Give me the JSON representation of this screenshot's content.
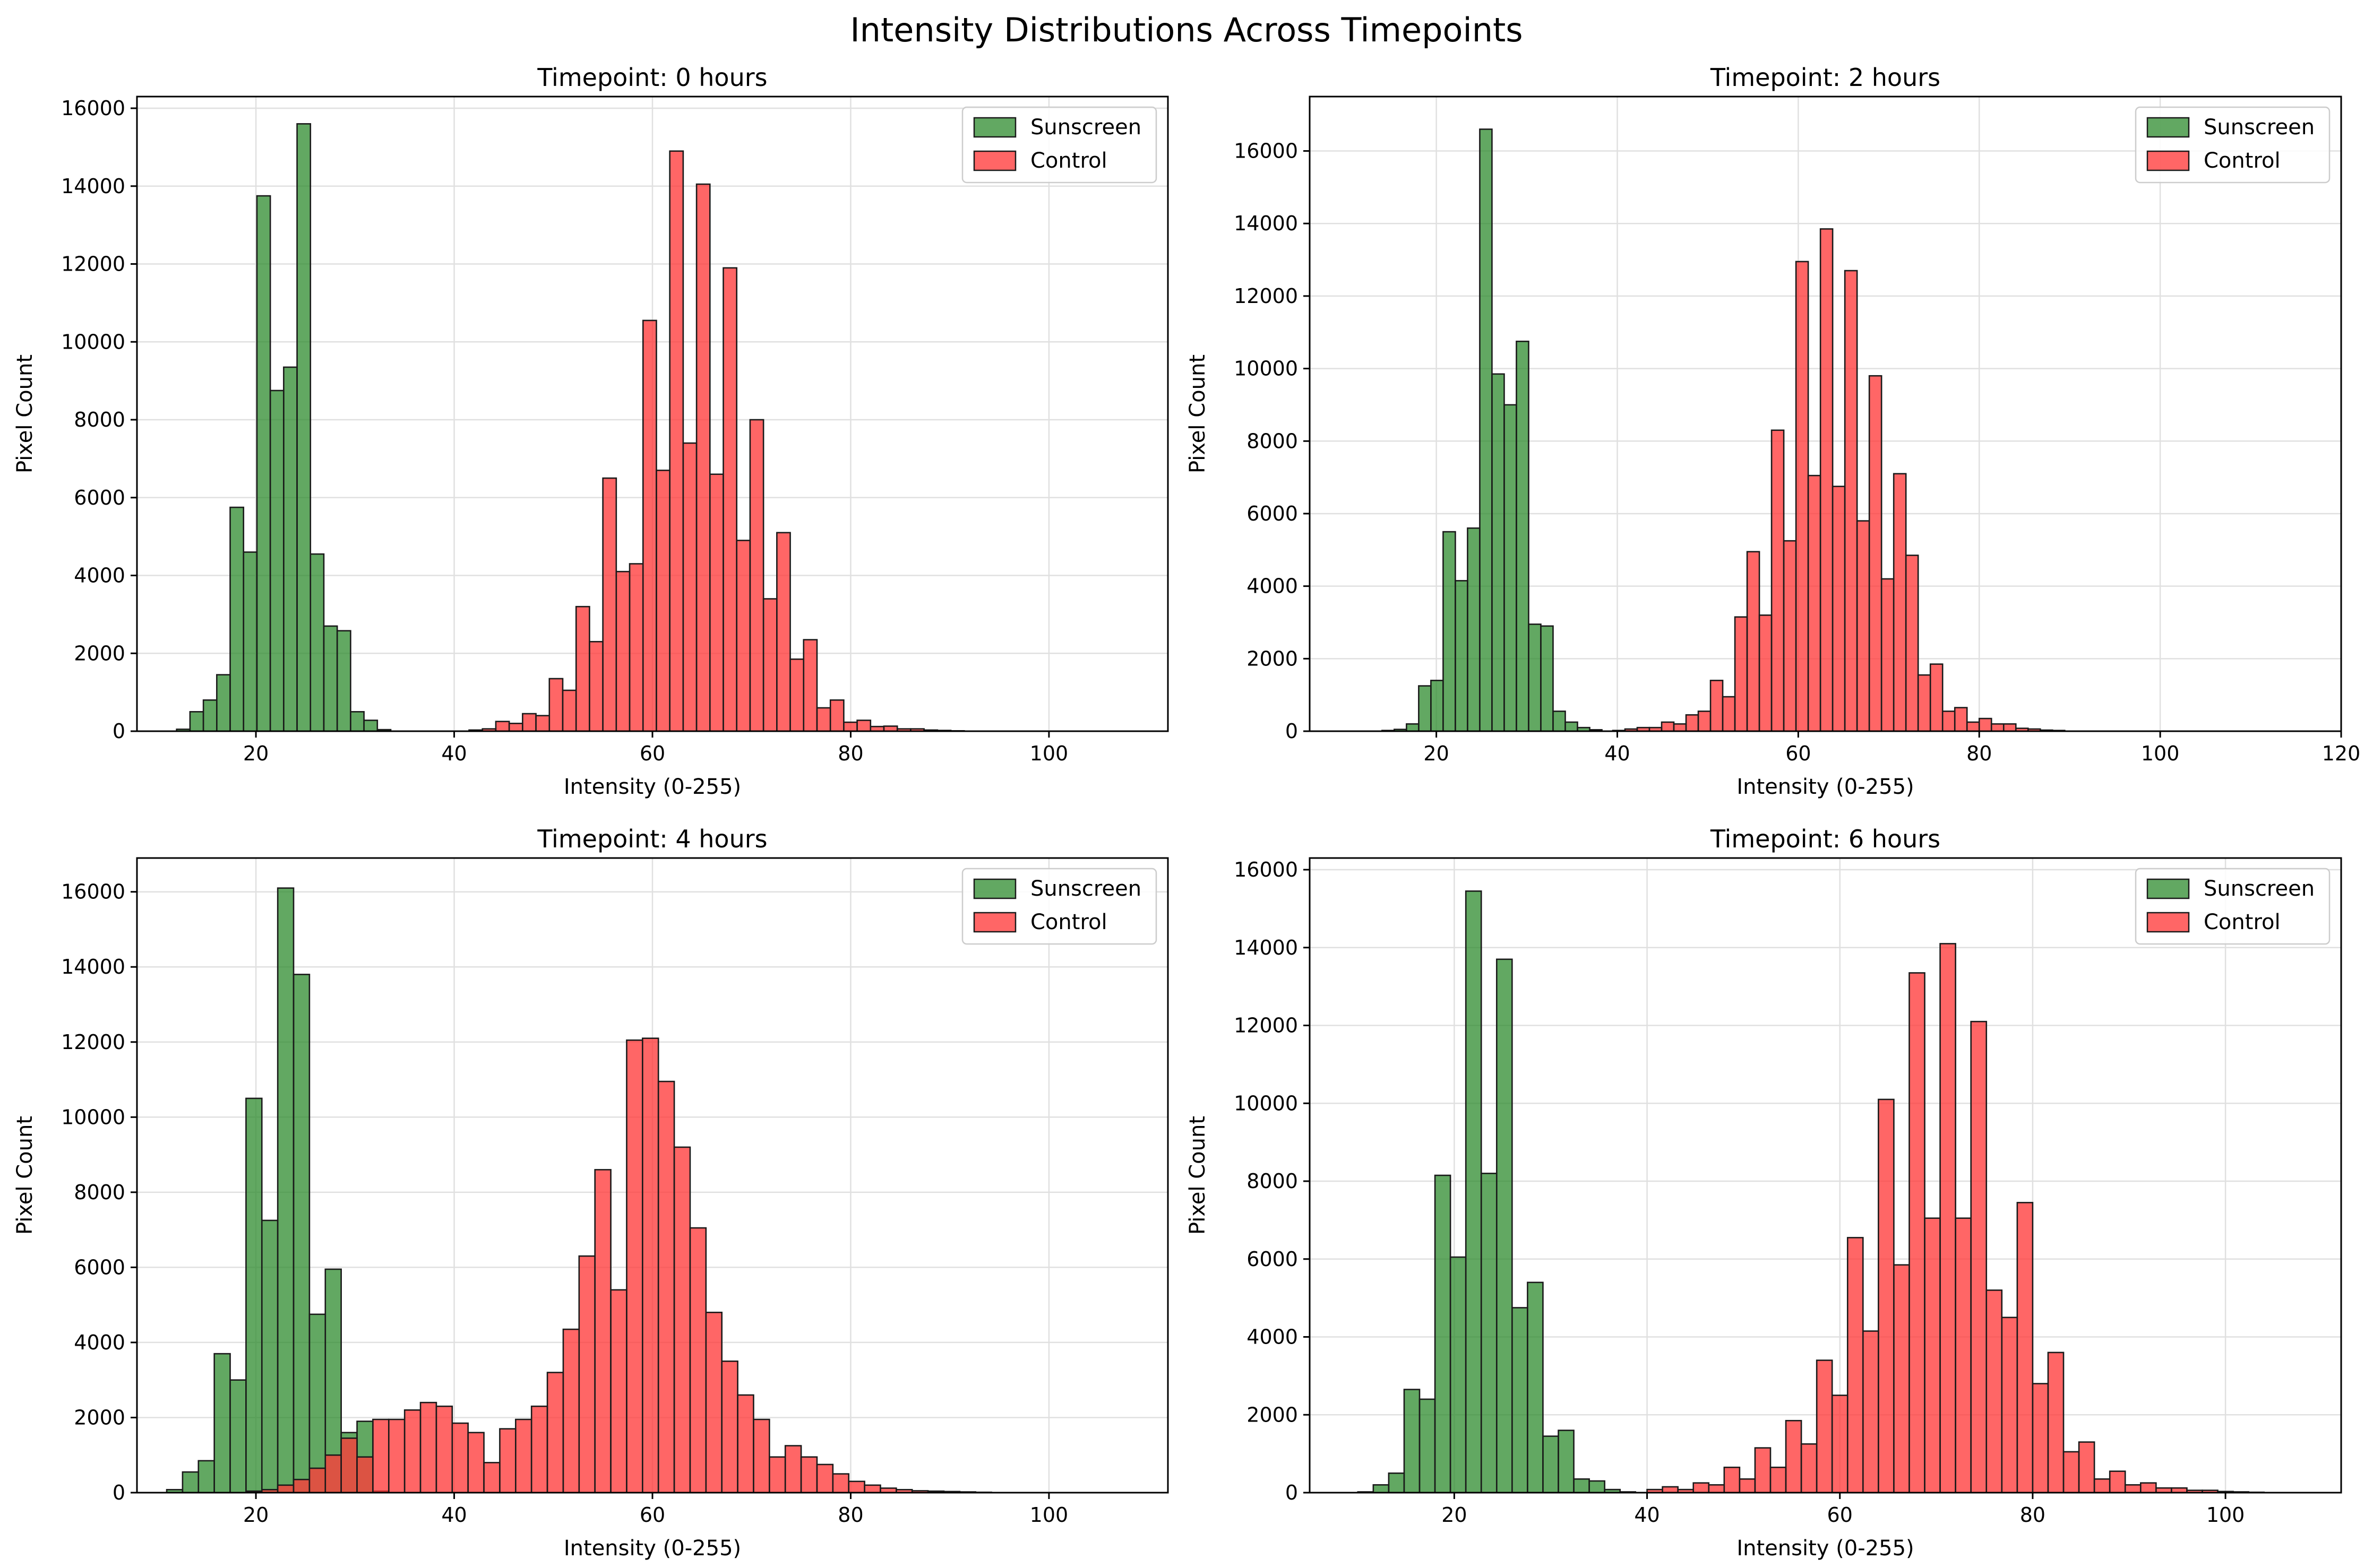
{
  "figure": {
    "suptitle": "Intensity Distributions Across Timepoints",
    "colors": {
      "Sunscreen": "#2e8b2e",
      "Control": "#ff3b3b",
      "edge": "#1a1a1a",
      "grid": "#e0e0e0"
    }
  },
  "chart_data": [
    {
      "type": "histogram",
      "title": "Timepoint: 0 hours",
      "xlabel": "Intensity (0-255)",
      "ylabel": "Pixel Count",
      "xlim": [
        8,
        112
      ],
      "ylim": [
        0,
        16300
      ],
      "xticks": [
        20,
        40,
        60,
        80,
        100
      ],
      "yticks": [
        0,
        2000,
        4000,
        6000,
        8000,
        10000,
        12000,
        14000,
        16000
      ],
      "grid": true,
      "legend": "top-right",
      "bin_width": 1.35,
      "series": [
        {
          "name": "Sunscreen",
          "start": 12,
          "values": [
            50,
            500,
            800,
            1450,
            5750,
            4600,
            13750,
            8750,
            9350,
            15600,
            4550,
            2700,
            2580,
            500,
            280,
            40
          ]
        },
        {
          "name": "Control",
          "start": 41.5,
          "values": [
            30,
            60,
            250,
            200,
            450,
            400,
            1350,
            1050,
            3200,
            2300,
            6500,
            4100,
            4300,
            10550,
            6700,
            14900,
            7400,
            14050,
            6600,
            11900,
            4900,
            8000,
            3400,
            5100,
            1850,
            2350,
            600,
            800,
            230,
            280,
            120,
            130,
            60,
            60,
            30,
            20,
            10
          ]
        }
      ]
    },
    {
      "type": "histogram",
      "title": "Timepoint: 2 hours",
      "xlabel": "Intensity (0-255)",
      "ylabel": "Pixel Count",
      "xlim": [
        6,
        120
      ],
      "ylim": [
        0,
        17500
      ],
      "xticks": [
        20,
        40,
        60,
        80,
        100,
        120
      ],
      "yticks": [
        0,
        2000,
        4000,
        6000,
        8000,
        10000,
        12000,
        14000,
        16000
      ],
      "grid": true,
      "legend": "top-right",
      "bin_width": 1.35,
      "series": [
        {
          "name": "Sunscreen",
          "start": 14,
          "values": [
            20,
            50,
            200,
            1250,
            1400,
            5500,
            4150,
            5600,
            16600,
            9850,
            9000,
            10750,
            2950,
            2900,
            550,
            250,
            100,
            40
          ]
        },
        {
          "name": "Control",
          "start": 39.5,
          "values": [
            20,
            60,
            100,
            100,
            250,
            200,
            450,
            550,
            1400,
            950,
            3150,
            4950,
            3200,
            8300,
            5250,
            12950,
            7050,
            13850,
            6750,
            12700,
            5800,
            9800,
            4200,
            7100,
            4850,
            1550,
            1850,
            550,
            650,
            250,
            350,
            200,
            200,
            80,
            60,
            30,
            20
          ]
        }
      ]
    },
    {
      "type": "histogram",
      "title": "Timepoint: 4 hours",
      "xlabel": "Intensity (0-255)",
      "ylabel": "Pixel Count",
      "xlim": [
        8,
        112
      ],
      "ylim": [
        0,
        16900
      ],
      "xticks": [
        20,
        40,
        60,
        80,
        100
      ],
      "yticks": [
        0,
        2000,
        4000,
        6000,
        8000,
        10000,
        12000,
        14000,
        16000
      ],
      "grid": true,
      "legend": "top-right",
      "bin_width": 1.6,
      "series": [
        {
          "name": "Sunscreen",
          "start": 11,
          "values": [
            80,
            550,
            850,
            3700,
            3000,
            10500,
            7250,
            16100,
            13800,
            4750,
            5950,
            1600,
            1900,
            40
          ]
        },
        {
          "name": "Control",
          "start": 19,
          "values": [
            40,
            80,
            200,
            350,
            650,
            1000,
            1450,
            950,
            1950,
            1950,
            2200,
            2400,
            2300,
            1850,
            1600,
            800,
            1700,
            1950,
            2300,
            3200,
            4350,
            6300,
            8600,
            5400,
            12050,
            12100,
            10950,
            9200,
            7050,
            4800,
            3500,
            2600,
            1950,
            950,
            1250,
            950,
            750,
            500,
            300,
            200,
            120,
            80,
            50,
            40,
            30,
            20,
            10
          ]
        }
      ]
    },
    {
      "type": "histogram",
      "title": "Timepoint: 6 hours",
      "xlabel": "Intensity (0-255)",
      "ylabel": "Pixel Count",
      "xlim": [
        5,
        112
      ],
      "ylim": [
        0,
        16300
      ],
      "xticks": [
        20,
        40,
        60,
        80,
        100
      ],
      "yticks": [
        0,
        2000,
        4000,
        6000,
        8000,
        10000,
        12000,
        14000,
        16000
      ],
      "grid": true,
      "legend": "top-right",
      "bin_width": 1.6,
      "series": [
        {
          "name": "Sunscreen",
          "start": 10,
          "values": [
            20,
            200,
            500,
            2650,
            2400,
            8150,
            6050,
            15450,
            8200,
            13700,
            4750,
            5400,
            1450,
            1600,
            350,
            300,
            80,
            20
          ]
        },
        {
          "name": "Control",
          "start": 40,
          "values": [
            80,
            150,
            80,
            250,
            200,
            650,
            350,
            1150,
            650,
            1850,
            1250,
            3400,
            2500,
            6550,
            4150,
            10100,
            5850,
            13350,
            7050,
            14100,
            7050,
            12100,
            5200,
            4500,
            7450,
            2800,
            3600,
            1050,
            1300,
            350,
            550,
            200,
            250,
            120,
            120,
            60,
            60,
            30,
            20,
            10
          ]
        }
      ]
    }
  ]
}
